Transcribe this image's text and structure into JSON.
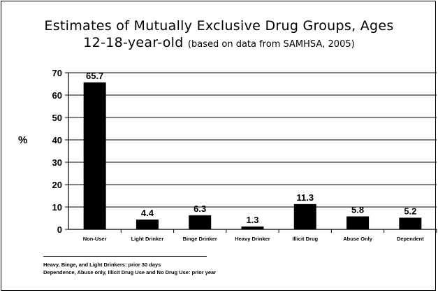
{
  "title_line1": "Estimates of Mutually Exclusive Drug Groups, Ages",
  "title_line2": "12-18-year-old",
  "title_note": "(based on data from SAMHSA, 2005)",
  "footnotes": [
    "Heavy, Binge, and Light Drinkers: prior 30 days",
    "Dependence, Abuse only, Illicit Drug Use and No Drug Use: prior year"
  ],
  "chart_data": {
    "type": "bar",
    "title": "Estimates of Mutually Exclusive Drug Groups, Ages 12-18-year-old",
    "ylabel": "%",
    "xlabel": "",
    "categories": [
      "Non-User",
      "Light Drinker",
      "Binge Drinker",
      "Heavy Drinker",
      "Illicit Drug",
      "Abuse Only",
      "Dependent"
    ],
    "values": [
      65.7,
      4.4,
      6.3,
      1.3,
      11.3,
      5.8,
      5.2
    ],
    "value_labels": [
      "65.7",
      "4.4",
      "6.3",
      "1.3",
      "11.3",
      "5.8",
      "5.2"
    ],
    "yticks": [
      0,
      10,
      20,
      30,
      40,
      50,
      60,
      70
    ],
    "ylim": [
      0,
      70
    ],
    "grid": true,
    "bar_color": "#000000"
  }
}
